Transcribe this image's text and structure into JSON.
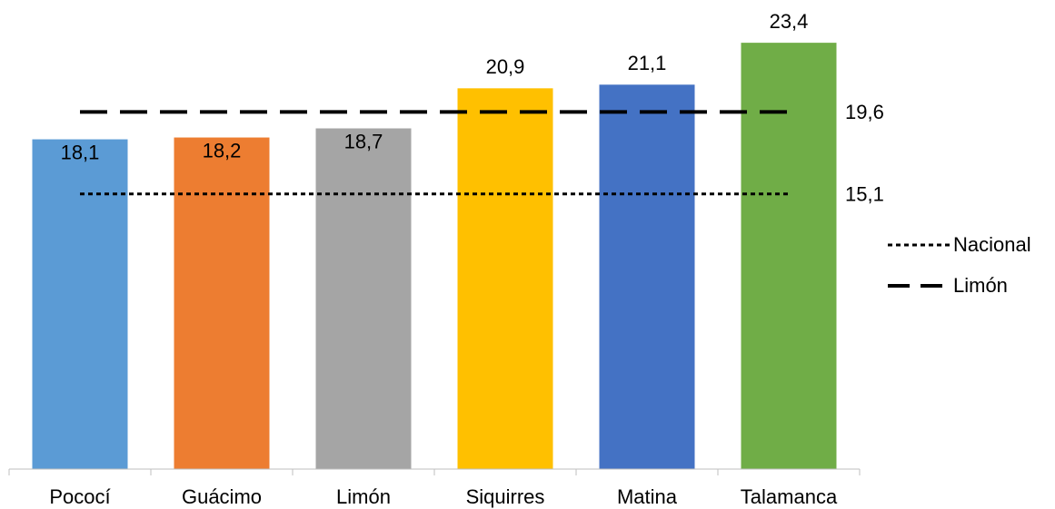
{
  "chart_data": {
    "type": "bar",
    "categories": [
      "Pococí",
      "Guácimo",
      "Limón",
      "Siquirres",
      "Matina",
      "Talamanca"
    ],
    "values": [
      18.1,
      18.2,
      18.7,
      20.9,
      21.1,
      23.4
    ],
    "value_labels": [
      "18,1",
      "18,2",
      "18,7",
      "20,9",
      "21,1",
      "23,4"
    ],
    "colors": [
      "#5b9bd5",
      "#ed7d31",
      "#a5a5a5",
      "#ffc000",
      "#4472c4",
      "#70ad47"
    ],
    "ylim": [
      0,
      25
    ],
    "reference_lines": [
      {
        "name": "Nacional",
        "value": 15.1,
        "label": "15,1",
        "style": "dotted",
        "color": "#000000"
      },
      {
        "name": "Limón",
        "value": 19.6,
        "label": "19,6",
        "style": "dashed",
        "color": "#000000"
      }
    ]
  }
}
